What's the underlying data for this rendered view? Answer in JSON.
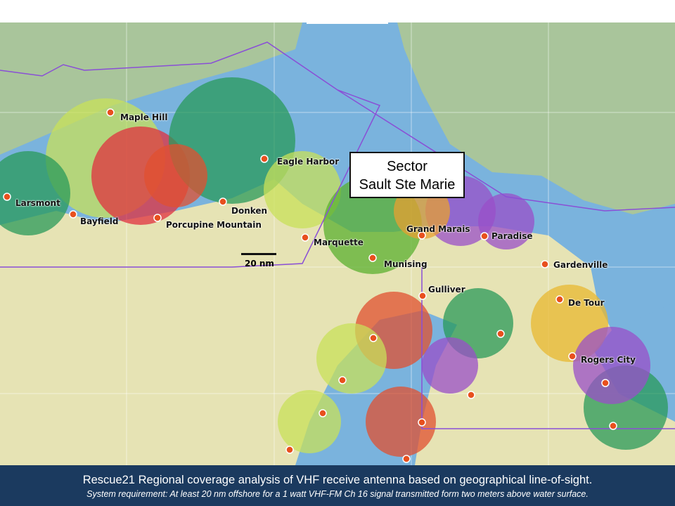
{
  "map": {
    "sector_label": {
      "line1": "Sector",
      "line2": "Sault Ste Marie"
    },
    "scale_bar": "20 nm",
    "stations": [
      {
        "name": "Maple Hill"
      },
      {
        "name": "Larsmont"
      },
      {
        "name": "Bayfield"
      },
      {
        "name": "Porcupine Mountain"
      },
      {
        "name": "Donken"
      },
      {
        "name": "Eagle Harbor"
      },
      {
        "name": "Marquette"
      },
      {
        "name": "Munising"
      },
      {
        "name": "Grand Marais"
      },
      {
        "name": "Paradise"
      },
      {
        "name": "Gardenville"
      },
      {
        "name": "Gulliver"
      },
      {
        "name": "De Tour"
      },
      {
        "name": "Rogers City"
      }
    ],
    "colors": {
      "water": "#7ab3dd",
      "land": "#a9c59b",
      "southland": "#e6e3b4",
      "boundary": "#8a4fd6",
      "station": "#e8501e"
    }
  },
  "caption": {
    "title": "Rescue21 Regional coverage analysis of VHF receive antenna based on geographical line-of-sight.",
    "subtitle": "System requirement: At least 20 nm offshore for a 1 watt VHF-FM Ch 16 signal transmitted form two meters above water surface."
  }
}
